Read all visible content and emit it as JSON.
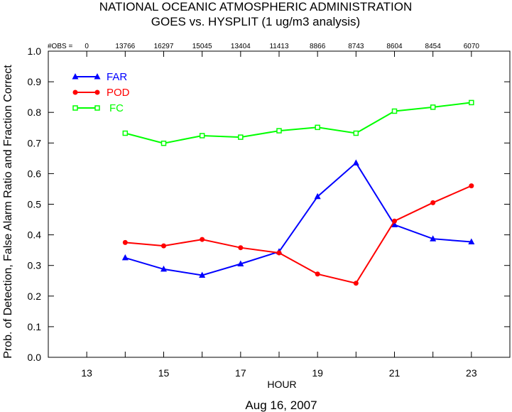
{
  "title_line1": "NATIONAL OCEANIC ATMOSPHERIC ADMINISTRATION",
  "title_line2": "GOES vs. HYSPLIT  (1 ug/m3 analysis)",
  "obs_label": "#OBS =",
  "date_label": "Aug 16, 2007",
  "chart_data": {
    "type": "line",
    "xlabel": "HOUR",
    "ylabel": "Prob. of Detection, False Alarm Ratio and Fraction Correct",
    "xlim": [
      12,
      24
    ],
    "ylim": [
      0,
      1.0
    ],
    "x_ticks": [
      13,
      15,
      17,
      19,
      21,
      23
    ],
    "y_ticks": [
      "0.0",
      "0.1",
      "0.2",
      "0.3",
      "0.4",
      "0.5",
      "0.6",
      "0.7",
      "0.8",
      "0.9",
      "1.0"
    ],
    "grid": false,
    "legend_position": "top-left",
    "obs_counts": [
      {
        "x": 13,
        "label": "0"
      },
      {
        "x": 14,
        "label": "13766"
      },
      {
        "x": 15,
        "label": "16297"
      },
      {
        "x": 16,
        "label": "15045"
      },
      {
        "x": 17,
        "label": "13404"
      },
      {
        "x": 18,
        "label": "11413"
      },
      {
        "x": 19,
        "label": "8866"
      },
      {
        "x": 20,
        "label": "8743"
      },
      {
        "x": 21,
        "label": "8604"
      },
      {
        "x": 22,
        "label": "8454"
      },
      {
        "x": 23,
        "label": "6070"
      }
    ],
    "x": [
      14,
      15,
      16,
      17,
      18,
      19,
      20,
      21,
      22,
      23
    ],
    "series": [
      {
        "name": "FAR",
        "color": "#0000ff",
        "marker": "triangle",
        "values": [
          0.325,
          0.288,
          0.268,
          0.305,
          0.345,
          0.525,
          0.635,
          0.433,
          0.387,
          0.377
        ]
      },
      {
        "name": "POD",
        "color": "#ff0000",
        "marker": "circle",
        "values": [
          0.375,
          0.364,
          0.385,
          0.358,
          0.341,
          0.272,
          0.242,
          0.445,
          0.505,
          0.56
        ]
      },
      {
        "name": "FC",
        "color": "#00ff00",
        "marker": "square",
        "values": [
          0.732,
          0.699,
          0.724,
          0.719,
          0.74,
          0.751,
          0.732,
          0.804,
          0.817,
          0.832
        ]
      }
    ]
  }
}
